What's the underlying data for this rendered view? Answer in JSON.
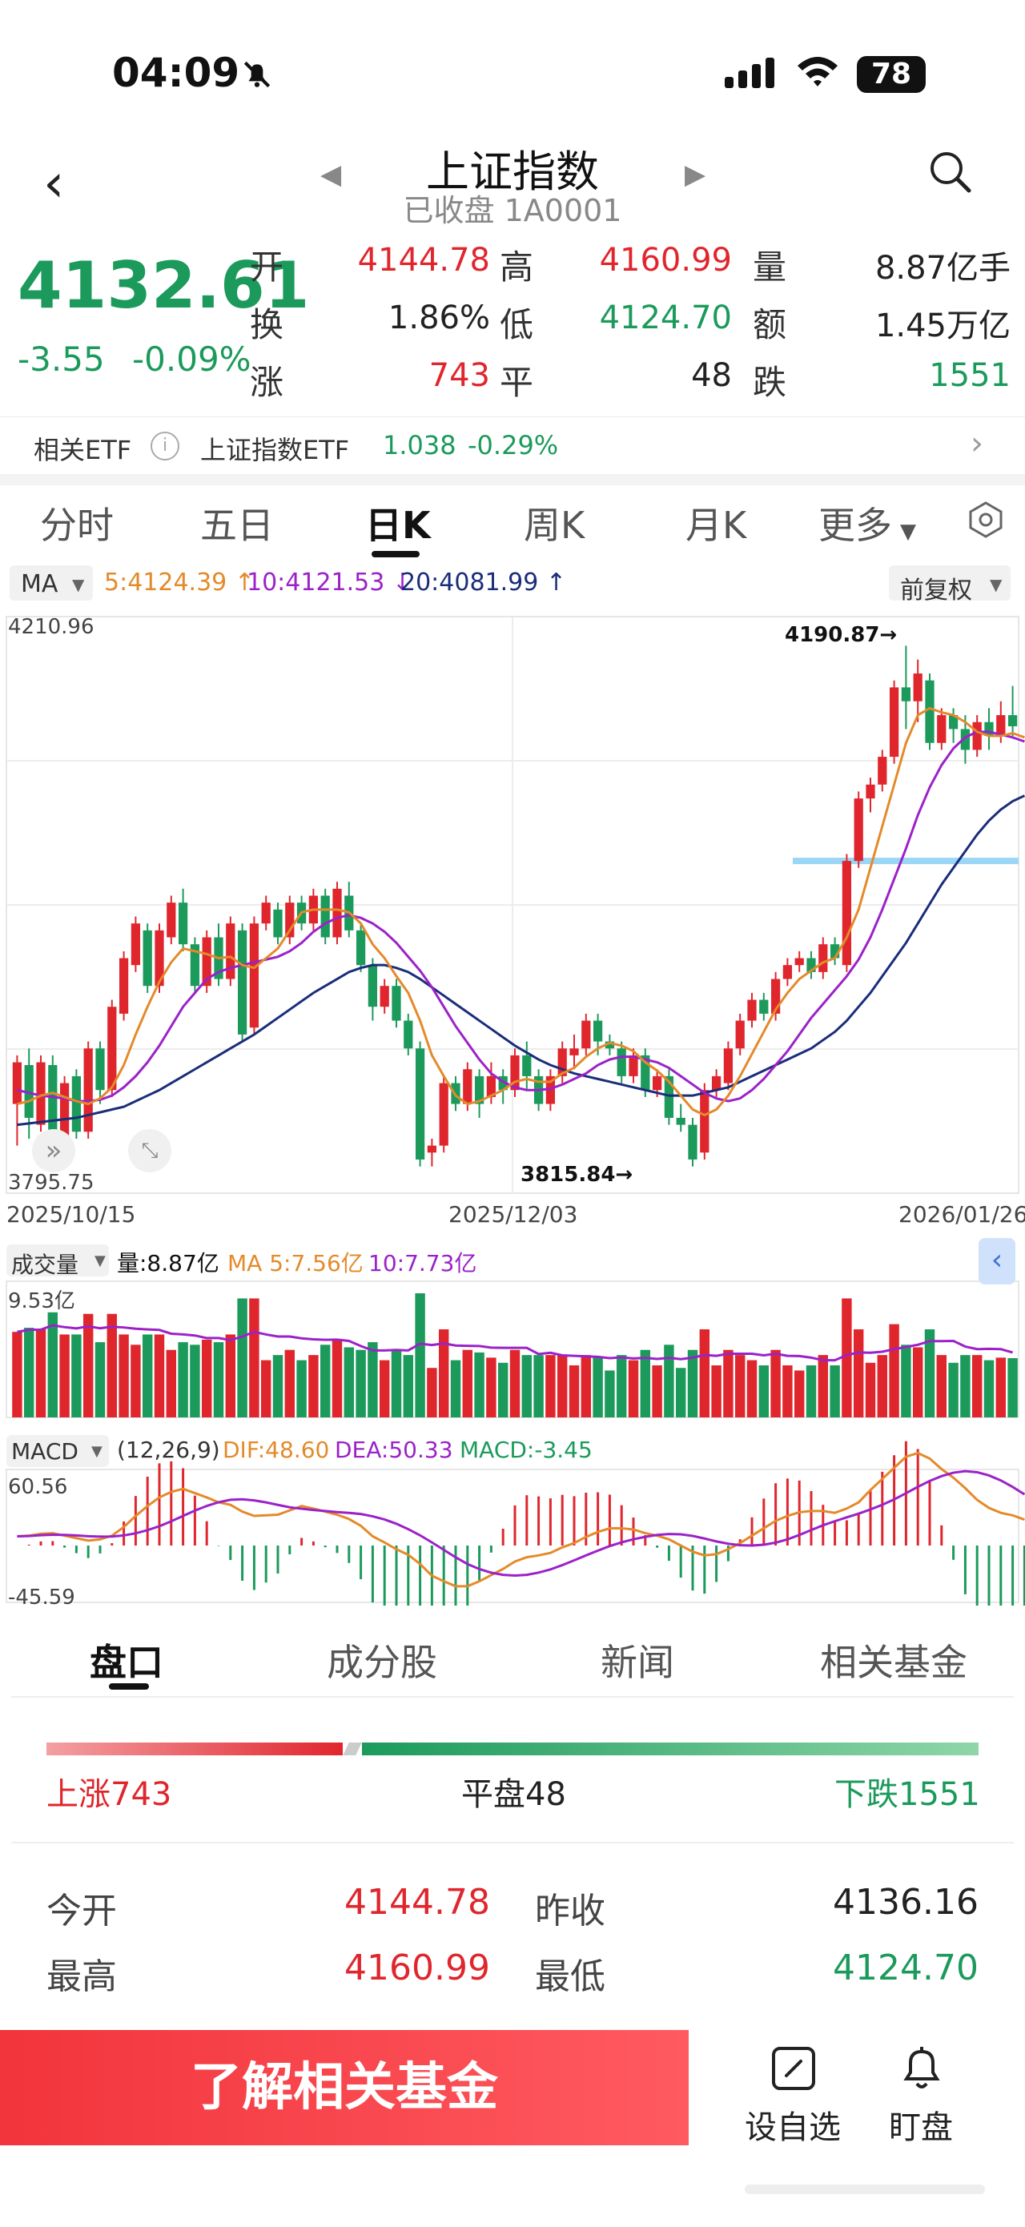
{
  "status_bar": {
    "time": "04:09",
    "battery": "78"
  },
  "header": {
    "title": "上证指数",
    "subtitle": "已收盘 1A0001"
  },
  "quote": {
    "price": "4132.61",
    "change": "-3.55",
    "change_pct": "-0.09%",
    "rows": [
      [
        {
          "label": "开",
          "value": "4144.78",
          "color": "red"
        },
        {
          "label": "高",
          "value": "4160.99",
          "color": "red"
        },
        {
          "label": "量",
          "value": "8.87亿手",
          "color": "black"
        }
      ],
      [
        {
          "label": "换",
          "value": "1.86%",
          "color": "black"
        },
        {
          "label": "低",
          "value": "4124.70",
          "color": "green"
        },
        {
          "label": "额",
          "value": "1.45万亿",
          "color": "black"
        }
      ],
      [
        {
          "label": "涨",
          "value": "743",
          "color": "red"
        },
        {
          "label": "平",
          "value": "48",
          "color": "black"
        },
        {
          "label": "跌",
          "value": "1551",
          "color": "green"
        }
      ]
    ]
  },
  "etf": {
    "label": "相关ETF",
    "name": "上证指数ETF",
    "price": "1.038",
    "pct": "-0.29%"
  },
  "tabs": {
    "t1": "分时",
    "t2": "五日",
    "t3": "日K",
    "t4": "周K",
    "t5": "月K",
    "t6": "更多"
  },
  "ma": {
    "type": "MA",
    "ma5": "5:4124.39",
    "ma10": "10:4121.53",
    "ma20": "20:4081.99",
    "adjust": "前复权"
  },
  "chart_data": {
    "type": "candlestick",
    "price_high_label": "4210.96",
    "price_low_label": "3795.75",
    "max_marker": "4190.87→",
    "min_marker": "3815.84→",
    "x_labels": [
      "2025/10/15",
      "2025/12/03",
      "2026/01/26"
    ],
    "ylim": [
      3795.75,
      4210.96
    ],
    "candles": [
      [
        3860,
        3890,
        3830,
        3895
      ],
      [
        3888,
        3850,
        3835,
        3900
      ],
      [
        3845,
        3890,
        3840,
        3895
      ],
      [
        3888,
        3830,
        3820,
        3895
      ],
      [
        3835,
        3875,
        3830,
        3880
      ],
      [
        3880,
        3840,
        3835,
        3885
      ],
      [
        3840,
        3900,
        3835,
        3905
      ],
      [
        3900,
        3870,
        3860,
        3905
      ],
      [
        3870,
        3930,
        3865,
        3935
      ],
      [
        3925,
        3965,
        3920,
        3970
      ],
      [
        3960,
        3990,
        3955,
        3995
      ],
      [
        3985,
        3945,
        3940,
        3990
      ],
      [
        3945,
        3985,
        3940,
        3990
      ],
      [
        3980,
        4005,
        3975,
        4010
      ],
      [
        4005,
        3975,
        3970,
        4015
      ],
      [
        3975,
        3945,
        3940,
        3980
      ],
      [
        3945,
        3980,
        3940,
        3985
      ],
      [
        3980,
        3950,
        3945,
        3990
      ],
      [
        3950,
        3990,
        3945,
        3995
      ],
      [
        3985,
        3910,
        3905,
        3990
      ],
      [
        3915,
        3990,
        3910,
        3995
      ],
      [
        3990,
        4005,
        3985,
        4010
      ],
      [
        4000,
        3980,
        3975,
        4005
      ],
      [
        3980,
        4005,
        3975,
        4010
      ],
      [
        4005,
        3990,
        3985,
        4010
      ],
      [
        3990,
        4010,
        3985,
        4015
      ],
      [
        4010,
        3980,
        3975,
        4015
      ],
      [
        3980,
        4015,
        3975,
        4020
      ],
      [
        4010,
        3985,
        3980,
        4020
      ],
      [
        3985,
        3960,
        3955,
        3990
      ],
      [
        3960,
        3930,
        3920,
        3965
      ],
      [
        3930,
        3945,
        3925,
        3950
      ],
      [
        3945,
        3920,
        3915,
        3950
      ],
      [
        3920,
        3900,
        3895,
        3925
      ],
      [
        3900,
        3820,
        3815,
        3905
      ],
      [
        3825,
        3830,
        3815,
        3835
      ],
      [
        3830,
        3875,
        3825,
        3880
      ],
      [
        3875,
        3860,
        3855,
        3880
      ],
      [
        3860,
        3885,
        3855,
        3890
      ],
      [
        3880,
        3860,
        3850,
        3885
      ],
      [
        3865,
        3880,
        3860,
        3890
      ],
      [
        3880,
        3870,
        3860,
        3885
      ],
      [
        3870,
        3895,
        3865,
        3900
      ],
      [
        3895,
        3880,
        3870,
        3905
      ],
      [
        3880,
        3860,
        3855,
        3885
      ],
      [
        3860,
        3880,
        3855,
        3885
      ],
      [
        3880,
        3900,
        3875,
        3905
      ],
      [
        3895,
        3900,
        3885,
        3910
      ],
      [
        3900,
        3920,
        3895,
        3925
      ],
      [
        3920,
        3905,
        3895,
        3925
      ],
      [
        3905,
        3900,
        3895,
        3910
      ],
      [
        3900,
        3880,
        3875,
        3905
      ],
      [
        3880,
        3895,
        3875,
        3900
      ],
      [
        3895,
        3870,
        3865,
        3900
      ],
      [
        3870,
        3880,
        3865,
        3885
      ],
      [
        3880,
        3850,
        3845,
        3885
      ],
      [
        3850,
        3845,
        3840,
        3860
      ],
      [
        3845,
        3820,
        3815,
        3850
      ],
      [
        3825,
        3870,
        3820,
        3875
      ],
      [
        3870,
        3880,
        3865,
        3885
      ],
      [
        3875,
        3900,
        3870,
        3905
      ],
      [
        3900,
        3920,
        3895,
        3925
      ],
      [
        3920,
        3935,
        3915,
        3940
      ],
      [
        3935,
        3925,
        3920,
        3940
      ],
      [
        3925,
        3950,
        3920,
        3955
      ],
      [
        3950,
        3960,
        3945,
        3965
      ],
      [
        3960,
        3965,
        3955,
        3970
      ],
      [
        3965,
        3955,
        3950,
        3970
      ],
      [
        3955,
        3975,
        3950,
        3980
      ],
      [
        3975,
        3965,
        3960,
        3980
      ],
      [
        3960,
        4035,
        3955,
        4040
      ],
      [
        4035,
        4080,
        4030,
        4085
      ],
      [
        4080,
        4090,
        4070,
        4095
      ],
      [
        4090,
        4110,
        4085,
        4115
      ],
      [
        4110,
        4160,
        4105,
        4165
      ],
      [
        4160,
        4150,
        4130,
        4190
      ],
      [
        4150,
        4170,
        4135,
        4180
      ],
      [
        4165,
        4120,
        4115,
        4170
      ],
      [
        4120,
        4140,
        4115,
        4145
      ],
      [
        4140,
        4130,
        4120,
        4145
      ],
      [
        4130,
        4115,
        4105,
        4140
      ],
      [
        4115,
        4135,
        4110,
        4140
      ],
      [
        4135,
        4125,
        4115,
        4145
      ],
      [
        4125,
        4140,
        4120,
        4150
      ],
      [
        4140,
        4132,
        4125,
        4161
      ]
    ],
    "ma5": [
      3860,
      3862,
      3866,
      3868,
      3865,
      3862,
      3860,
      3864,
      3872,
      3888,
      3910,
      3930,
      3948,
      3962,
      3972,
      3970,
      3968,
      3965,
      3966,
      3960,
      3958,
      3965,
      3972,
      3985,
      3998,
      4000,
      4000,
      4000,
      3998,
      3990,
      3975,
      3965,
      3952,
      3940,
      3920,
      3895,
      3880,
      3866,
      3860,
      3862,
      3866,
      3870,
      3876,
      3878,
      3876,
      3876,
      3882,
      3886,
      3894,
      3900,
      3904,
      3902,
      3898,
      3890,
      3884,
      3876,
      3866,
      3856,
      3852,
      3856,
      3866,
      3880,
      3896,
      3912,
      3928,
      3940,
      3950,
      3956,
      3962,
      3965,
      3980,
      4000,
      4030,
      4060,
      4090,
      4120,
      4140,
      4145,
      4142,
      4140,
      4135,
      4128,
      4125,
      4125,
      4127,
      4124
    ],
    "ma10": [
      3870,
      3868,
      3866,
      3865,
      3864,
      3862,
      3862,
      3863,
      3866,
      3872,
      3880,
      3890,
      3902,
      3916,
      3930,
      3940,
      3950,
      3955,
      3958,
      3960,
      3962,
      3964,
      3966,
      3970,
      3976,
      3984,
      3990,
      3994,
      3996,
      3994,
      3990,
      3984,
      3976,
      3966,
      3956,
      3944,
      3930,
      3916,
      3904,
      3892,
      3882,
      3876,
      3872,
      3870,
      3870,
      3871,
      3874,
      3878,
      3882,
      3888,
      3892,
      3894,
      3894,
      3892,
      3890,
      3886,
      3880,
      3874,
      3868,
      3864,
      3862,
      3864,
      3870,
      3878,
      3888,
      3898,
      3910,
      3922,
      3932,
      3942,
      3952,
      3964,
      3980,
      4000,
      4022,
      4044,
      4068,
      4088,
      4104,
      4116,
      4124,
      4128,
      4128,
      4126,
      4124,
      4121
    ],
    "ma20": [
      3845,
      3846,
      3847,
      3848,
      3849,
      3850,
      3852,
      3854,
      3856,
      3858,
      3862,
      3866,
      3870,
      3875,
      3880,
      3885,
      3890,
      3895,
      3900,
      3905,
      3910,
      3916,
      3922,
      3928,
      3934,
      3940,
      3945,
      3950,
      3955,
      3958,
      3960,
      3960,
      3958,
      3955,
      3950,
      3944,
      3938,
      3932,
      3926,
      3920,
      3914,
      3908,
      3902,
      3897,
      3892,
      3888,
      3885,
      3882,
      3880,
      3878,
      3876,
      3874,
      3872,
      3870,
      3868,
      3866,
      3866,
      3866,
      3868,
      3870,
      3872,
      3876,
      3880,
      3884,
      3888,
      3892,
      3896,
      3900,
      3906,
      3912,
      3920,
      3930,
      3940,
      3952,
      3964,
      3976,
      3990,
      4004,
      4018,
      4030,
      4042,
      4054,
      4064,
      4072,
      4078,
      4082
    ]
  },
  "volume": {
    "label": "成交量",
    "vol": "量:8.87亿",
    "ma5": "MA 5:7.56亿",
    "ma10": "10:7.73亿",
    "top": "9.53亿"
  },
  "macd": {
    "label": "MACD",
    "params": "(12,26,9)",
    "dif": "DIF:48.60",
    "dea": "DEA:50.33",
    "macd": "MACD:-3.45",
    "top": "60.56",
    "bottom": "-45.59"
  },
  "bottom_tabs": {
    "t1": "盘口",
    "t2": "成分股",
    "t3": "新闻",
    "t4": "相关基金"
  },
  "breadth": {
    "up": "上涨743",
    "flat": "平盘48",
    "down": "下跌1551"
  },
  "stats": [
    {
      "l1": "今开",
      "v1": "4144.78",
      "c1": "red",
      "l2": "昨收",
      "v2": "4136.16",
      "c2": "black"
    },
    {
      "l1": "最高",
      "v1": "4160.99",
      "c1": "red",
      "l2": "最低",
      "v2": "4124.70",
      "c2": "green"
    }
  ],
  "footer": {
    "cta": "了解相关基金",
    "add": "设自选",
    "watch": "盯盘"
  }
}
